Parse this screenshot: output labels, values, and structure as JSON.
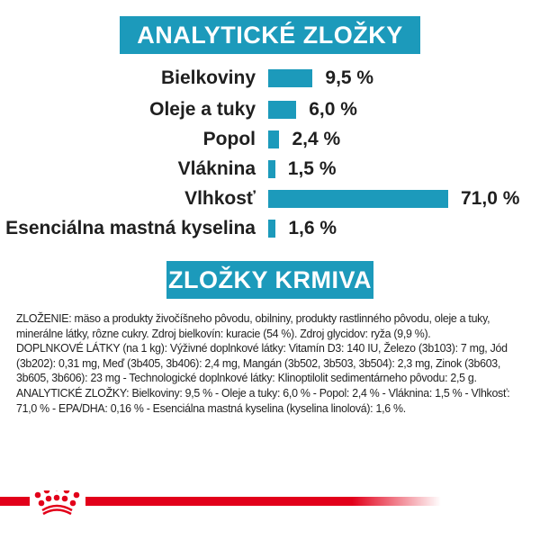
{
  "analytic": {
    "title": "ANALYTICKÉ ZLOŽKY",
    "items": [
      {
        "label": "Bielkoviny",
        "value": 9.5,
        "text": "9,5 %"
      },
      {
        "label": "Oleje a tuky",
        "value": 6.0,
        "text": "6,0 %"
      },
      {
        "label": "Popol",
        "value": 2.4,
        "text": "2,4 %"
      },
      {
        "label": "Vláknina",
        "value": 1.5,
        "text": "1,5 %"
      },
      {
        "label": "Vlhkosť",
        "value": 71.0,
        "text": "71,0 %"
      },
      {
        "label": "Esenciálna mastná kyselina",
        "value": 1.6,
        "text": "1,6 %"
      }
    ]
  },
  "composition": {
    "title": "ZLOŽKY KRMIVA",
    "p1": "ZLOŽENIE: mäso a produkty živočíšneho pôvodu, obilniny, produkty rastlinného pôvodu, oleje a tuky, minerálne látky, rôzne cukry. Zdroj bielkovín: kuracie (54 %). Zdroj glycidov: ryža (9,9 %).",
    "p2": "DOPLNKOVÉ LÁTKY (na 1 kg): Výživné doplnkové látky: Vitamín D3: 140 IU, Železo (3b103): 7 mg, Jód (3b202): 0,31 mg, Meď (3b405, 3b406): 2,4 mg, Mangán (3b502, 3b503, 3b504): 2,3 mg, Zinok (3b603, 3b605, 3b606): 23 mg - Technologické doplnkové látky: Klinoptilolit sedimentárneho pôvodu: 2,5 g.",
    "p3": "ANALYTICKÉ ZLOŽKY: Bielkoviny: 9,5 % - Oleje a tuky: 6,0 % - Popol: 2,4 % - Vláknina: 1,5 % - Vlhkosť: 71,0 % - EPA/DHA: 0,16 % - Esenciálna mastná kyselina (kyselina linolová): 1,6 %."
  },
  "colors": {
    "accent": "#1c9abb",
    "brand": "#e2001a"
  },
  "logo": "royal-canin-crown"
}
